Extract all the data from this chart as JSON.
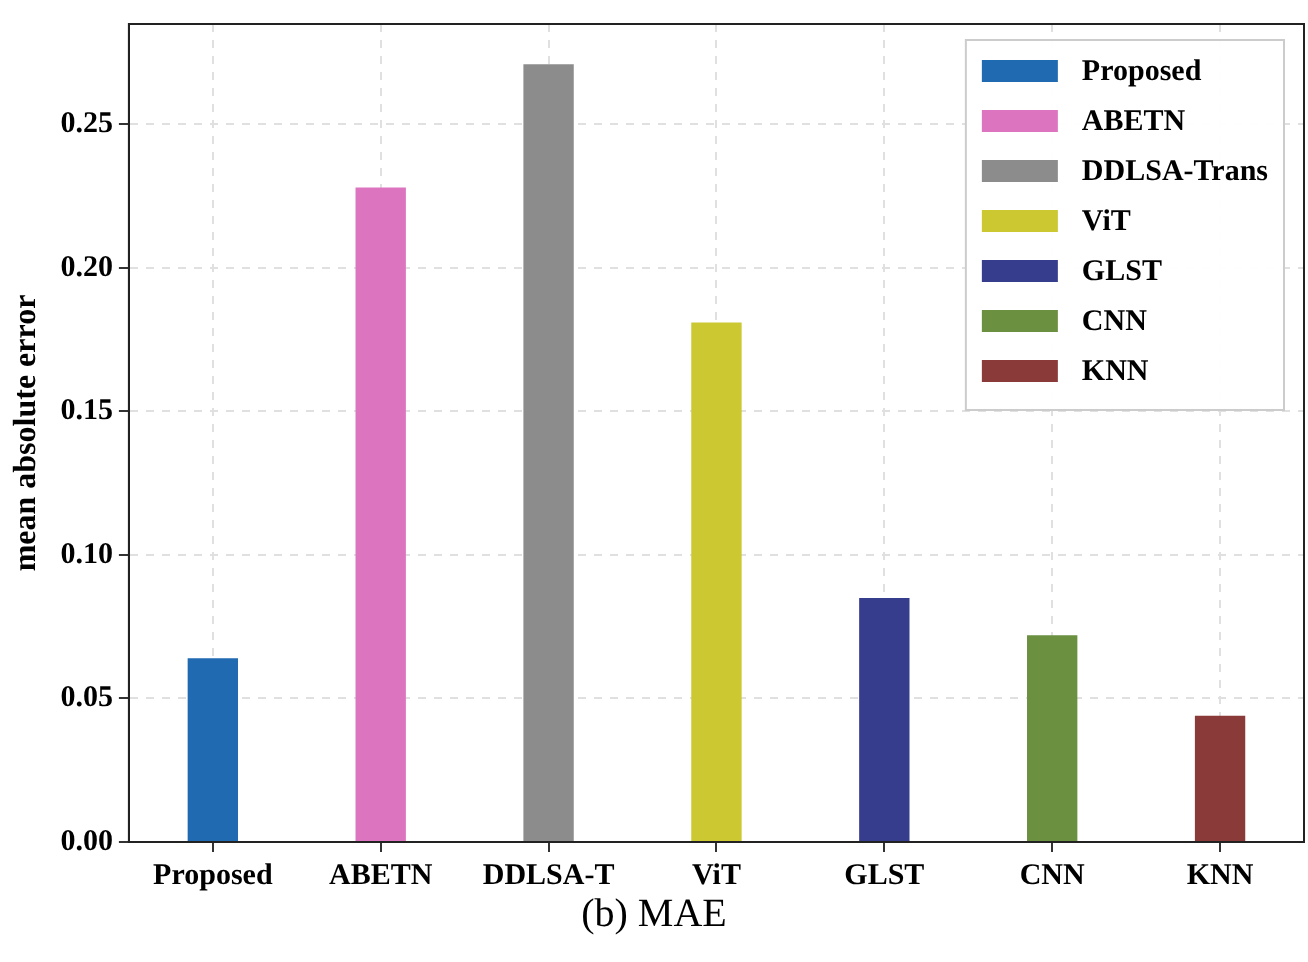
{
  "chart_data": {
    "type": "bar",
    "ylabel": "mean absolute error",
    "annotations": [
      "(b) MAE"
    ],
    "categories": [
      "Proposed",
      "ABETN",
      "DDLSA-T",
      "ViT",
      "GLST",
      "CNN",
      "KNN"
    ],
    "series": [
      {
        "name": "Proposed",
        "color": "#1f6ab0",
        "values": [
          0.064,
          null,
          null,
          null,
          null,
          null,
          null
        ]
      },
      {
        "name": "ABETN",
        "color": "#dd74c0",
        "values": [
          null,
          0.228,
          null,
          null,
          null,
          null,
          null
        ]
      },
      {
        "name": "DDLSA-Trans",
        "color": "#8c8c8c",
        "values": [
          null,
          null,
          0.271,
          null,
          null,
          null,
          null
        ]
      },
      {
        "name": "ViT",
        "color": "#cbc832",
        "values": [
          null,
          null,
          null,
          0.181,
          null,
          null,
          null
        ]
      },
      {
        "name": "GLST",
        "color": "#363d8c",
        "values": [
          null,
          null,
          null,
          null,
          0.085,
          null,
          null
        ]
      },
      {
        "name": "CNN",
        "color": "#6a9040",
        "values": [
          null,
          null,
          null,
          null,
          null,
          0.072,
          null
        ]
      },
      {
        "name": "KNN",
        "color": "#8b3a3a",
        "values": [
          null,
          null,
          null,
          null,
          null,
          null,
          0.044
        ]
      }
    ],
    "ylim": [
      0,
      0.285
    ],
    "yticks": [
      {
        "value": 0,
        "label": "0.00"
      },
      0.05,
      {
        "value": 0.1,
        "label": "0.10"
      },
      0.15,
      {
        "value": 0.2,
        "label": "0.20"
      },
      0.25
    ],
    "grid": true,
    "legend": "top right"
  }
}
